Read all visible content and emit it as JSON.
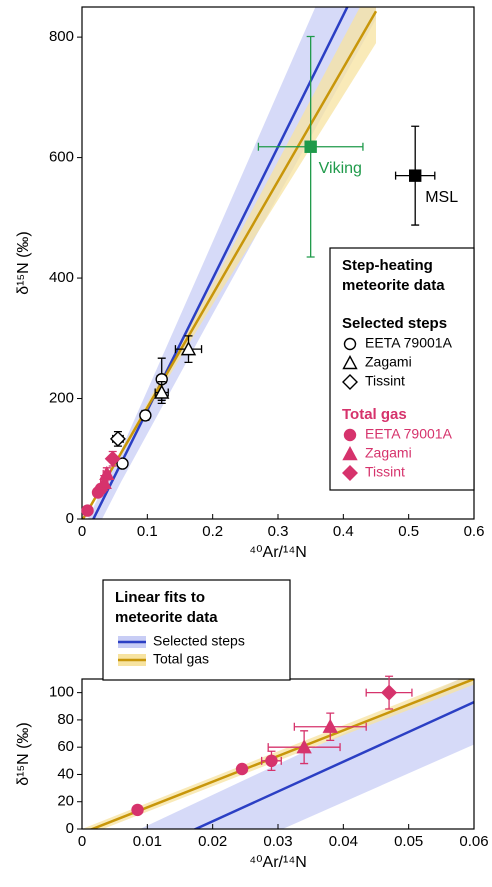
{
  "chart_data": [
    {
      "type": "scatter",
      "xlabel": "⁴⁰Ar/¹⁴N",
      "ylabel": "δ¹⁵N (‰)",
      "xlim": [
        0,
        0.6
      ],
      "ylim": [
        0,
        850
      ],
      "xticks": [
        0,
        0.1,
        0.2,
        0.3,
        0.4,
        0.5,
        0.6
      ],
      "yticks": [
        0,
        200,
        400,
        600,
        800
      ],
      "legend_title": [
        "Step-heating",
        "meteorite data"
      ],
      "fits": [
        {
          "color": "#2b3fc4",
          "band_color": "#c8cdf5",
          "x": [
            0,
            0.06,
            0.2,
            0.45
          ],
          "values": [
            -38,
            93,
            399,
            946
          ],
          "lower": [
            -65,
            62,
            340,
            830
          ],
          "upper": [
            -20,
            115,
            460,
            1080
          ]
        },
        {
          "color": "#c8960a",
          "band_color": "#f7e3a0",
          "x": [
            0,
            0.06,
            0.2,
            0.45
          ],
          "values": [
            -3,
            110,
            373,
            843
          ],
          "lower": [
            -6,
            106,
            356,
            790
          ],
          "upper": [
            0,
            114,
            390,
            900
          ]
        }
      ],
      "groups": [
        {
          "name": "Selected steps",
          "color": "#000000",
          "filled": false,
          "series": [
            {
              "name": "EETA 79001A",
              "marker": "circle",
              "x": [
                0.097,
                0.122,
                0.062
              ],
              "values": [
                172,
                232,
                92
              ],
              "xerr": [
                0.005,
                0.007,
                0.005
              ],
              "yerr": [
                8,
                35,
                5
              ]
            },
            {
              "name": "Zagami",
              "marker": "triangle",
              "x": [
                0.122,
                0.163
              ],
              "values": [
                210,
                282
              ],
              "xerr": [
                0.01,
                0.02
              ],
              "yerr": [
                18,
                22
              ]
            },
            {
              "name": "Tissint",
              "marker": "diamond",
              "x": [
                0.055
              ],
              "values": [
                133
              ],
              "xerr": [
                0.008
              ],
              "yerr": [
                12
              ]
            }
          ]
        },
        {
          "name": "Total gas",
          "color": "#d6336c",
          "filled": true,
          "series": [
            {
              "name": "EETA 79001A",
              "marker": "circle",
              "x": [
                0.0085,
                0.0245,
                0.029
              ],
              "values": [
                14,
                44,
                50
              ],
              "xerr": [
                null,
                null,
                0.0015
              ],
              "yerr": [
                null,
                null,
                7
              ]
            },
            {
              "name": "Zagami",
              "marker": "triangle",
              "x": [
                0.034,
                0.038
              ],
              "values": [
                60,
                75
              ],
              "xerr": [
                0.0055,
                0.0055
              ],
              "yerr": [
                12,
                10
              ]
            },
            {
              "name": "Tissint",
              "marker": "diamond",
              "x": [
                0.047
              ],
              "values": [
                100
              ],
              "xerr": [
                0.0035
              ],
              "yerr": [
                12
              ]
            }
          ]
        }
      ],
      "series": [
        {
          "name": "Viking",
          "color": "#1f9a4a",
          "marker": "square",
          "x": [
            0.35
          ],
          "values": [
            618
          ],
          "xerr": [
            0.08
          ],
          "yerr": [
            183
          ]
        },
        {
          "name": "MSL",
          "color": "#000000",
          "marker": "square",
          "x": [
            0.51
          ],
          "values": [
            570
          ],
          "xerr": [
            0.03
          ],
          "yerr": [
            82
          ]
        }
      ]
    },
    {
      "type": "scatter",
      "xlabel": "⁴⁰Ar/¹⁴N",
      "ylabel": "δ¹⁵N (‰)",
      "xlim": [
        0,
        0.06
      ],
      "ylim": [
        0,
        110
      ],
      "xticks": [
        0,
        0.01,
        0.02,
        0.03,
        0.04,
        0.05,
        0.06
      ],
      "yticks": [
        0,
        20,
        40,
        60,
        80,
        100
      ],
      "legend_title": [
        "Linear fits to",
        "meteorite data"
      ],
      "fits": [
        {
          "name": "Selected steps",
          "color": "#2b3fc4",
          "band_color": "#c8cdf5",
          "x": [
            0,
            0.06,
            0.2,
            0.45
          ],
          "values": [
            -38,
            93,
            399,
            946
          ],
          "lower": [
            -65,
            62,
            340,
            830
          ],
          "upper": [
            -20,
            115,
            460,
            1080
          ]
        },
        {
          "name": "Total gas",
          "color": "#c8960a",
          "band_color": "#f7e3a0",
          "x": [
            0,
            0.06,
            0.2,
            0.45
          ],
          "values": [
            -3,
            110,
            373,
            843
          ],
          "lower": [
            -6,
            106,
            356,
            790
          ],
          "upper": [
            0,
            114,
            390,
            900
          ]
        }
      ],
      "series": [
        {
          "color": "#d6336c",
          "marker": "circle",
          "x": [
            0.0085,
            0.0245,
            0.029
          ],
          "values": [
            14,
            44,
            50
          ],
          "xerr": [
            null,
            null,
            0.0015
          ],
          "yerr": [
            null,
            null,
            7
          ]
        },
        {
          "color": "#d6336c",
          "marker": "triangle",
          "x": [
            0.034,
            0.038
          ],
          "values": [
            60,
            75
          ],
          "xerr": [
            0.0055,
            0.0055
          ],
          "yerr": [
            12,
            10
          ]
        },
        {
          "color": "#d6336c",
          "marker": "diamond",
          "x": [
            0.047
          ],
          "values": [
            100
          ],
          "xerr": [
            0.0035
          ],
          "yerr": [
            12
          ]
        }
      ]
    }
  ]
}
